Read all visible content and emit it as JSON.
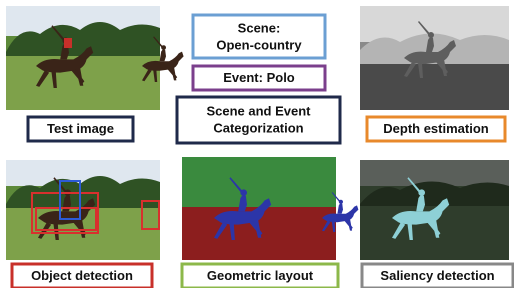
{
  "labels": {
    "test_image": "Test image",
    "scene_line1": "Scene:",
    "scene_line2": "Open-country",
    "event": "Event: Polo",
    "categorization_line1": "Scene and Event",
    "categorization_line2": "Categorization",
    "depth": "Depth estimation",
    "object": "Object detection",
    "geometric": "Geometric layout",
    "saliency": "Saliency detection"
  }
}
